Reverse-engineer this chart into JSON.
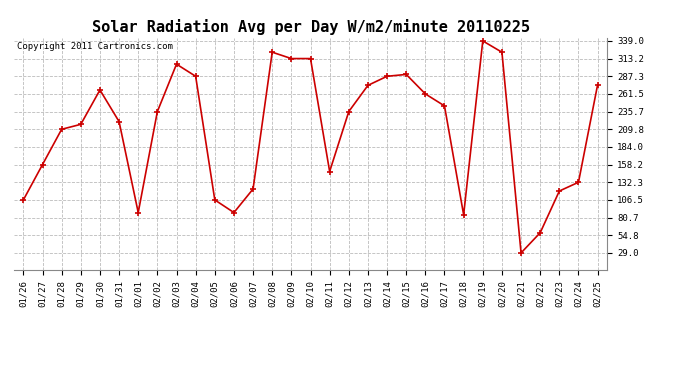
{
  "title": "Solar Radiation Avg per Day W/m2/minute 20110225",
  "copyright": "Copyright 2011 Cartronics.com",
  "dates": [
    "01/26",
    "01/27",
    "01/28",
    "01/29",
    "01/30",
    "01/31",
    "02/01",
    "02/02",
    "02/03",
    "02/04",
    "02/05",
    "02/06",
    "02/07",
    "02/08",
    "02/09",
    "02/10",
    "02/11",
    "02/12",
    "02/13",
    "02/14",
    "02/15",
    "02/16",
    "02/17",
    "02/18",
    "02/19",
    "02/20",
    "02/21",
    "02/22",
    "02/23",
    "02/24",
    "02/25"
  ],
  "values": [
    106.5,
    158.2,
    209.8,
    217.0,
    267.3,
    221.0,
    88.0,
    235.7,
    305.0,
    287.3,
    106.5,
    88.0,
    122.5,
    322.5,
    313.2,
    313.2,
    148.0,
    235.7,
    274.0,
    287.3,
    290.0,
    261.5,
    244.0,
    84.7,
    339.0,
    322.5,
    29.0,
    58.5,
    119.5,
    132.3,
    275.0
  ],
  "line_color": "#cc0000",
  "marker": "+",
  "bg_color": "#ffffff",
  "grid_color": "#bbbbbb",
  "yticks": [
    29.0,
    54.8,
    80.7,
    106.5,
    132.3,
    158.2,
    184.0,
    209.8,
    235.7,
    261.5,
    287.3,
    313.2,
    339.0
  ],
  "ymin": 4.0,
  "ymax": 344.0,
  "title_fontsize": 11,
  "copyright_fontsize": 6.5,
  "xtick_fontsize": 6.5,
  "ytick_fontsize": 6.5
}
